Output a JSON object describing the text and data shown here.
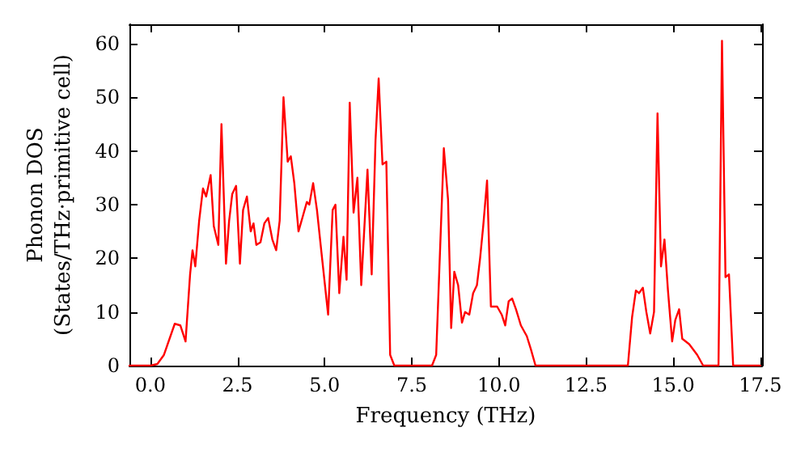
{
  "chart_data": {
    "type": "line",
    "xlabel": "Frequency (THz)",
    "ylabel": "Phonon DOS\n(States/THz·primitive cell)",
    "xlim": [
      -0.6,
      17.55
    ],
    "ylim": [
      0,
      63.6
    ],
    "xticks": [
      {
        "value": 0,
        "label": "0.0"
      },
      {
        "value": 2.5,
        "label": "2.5"
      },
      {
        "value": 5,
        "label": "5.0"
      },
      {
        "value": 7.5,
        "label": "7.5"
      },
      {
        "value": 10,
        "label": "10.0"
      },
      {
        "value": 12.5,
        "label": "12.5"
      },
      {
        "value": 15,
        "label": "15.0"
      },
      {
        "value": 17.5,
        "label": "17.5"
      }
    ],
    "yticks": [
      0,
      10,
      20,
      30,
      40,
      50,
      60
    ],
    "grid": false,
    "marker": "none",
    "line_style": "solid",
    "series": [
      {
        "color": "#ff0000",
        "x": [
          -0.6,
          0,
          0.2,
          0.39,
          0.7,
          0.86,
          1.01,
          1.14,
          1.21,
          1.29,
          1.4,
          1.51,
          1.6,
          1.73,
          1.82,
          1.95,
          2.04,
          2.17,
          2.26,
          2.35,
          2.46,
          2.57,
          2.66,
          2.77,
          2.88,
          2.96,
          3.04,
          3.16,
          3.27,
          3.38,
          3.5,
          3.61,
          3.71,
          3.82,
          3.94,
          4.03,
          4.13,
          4.25,
          4.36,
          4.49,
          4.56,
          4.67,
          4.78,
          4.91,
          5.1,
          5.23,
          5.31,
          5.42,
          5.54,
          5.63,
          5.72,
          5.83,
          5.94,
          6.05,
          6.23,
          6.35,
          6.46,
          6.55,
          6.66,
          6.77,
          6.88,
          7,
          8.08,
          8.2,
          8.42,
          8.54,
          8.63,
          8.72,
          8.83,
          8.94,
          9.03,
          9.15,
          9.26,
          9.37,
          9.46,
          9.55,
          9.66,
          9.77,
          9.95,
          10.08,
          10.18,
          10.28,
          10.38,
          10.49,
          10.63,
          10.8,
          10.92,
          11.05,
          13.7,
          13.82,
          13.93,
          14.02,
          14.13,
          14.23,
          14.34,
          14.45,
          14.55,
          14.65,
          14.75,
          14.85,
          14.97,
          15.06,
          15.17,
          15.26,
          15.46,
          15.69,
          15.86,
          16.3,
          16.4,
          16.5,
          16.6,
          16.72,
          17.5
        ],
        "values": [
          0,
          0,
          0.3,
          2,
          7.8,
          7.5,
          4.5,
          17,
          21.5,
          18.5,
          27,
          33,
          31.5,
          35.5,
          26,
          22.5,
          45,
          19,
          27,
          32,
          33.5,
          19,
          29,
          31.5,
          25,
          26.5,
          22.5,
          23,
          26.5,
          27.5,
          23.5,
          21.5,
          27,
          50,
          38,
          39,
          34,
          25,
          27.5,
          30.5,
          30,
          34,
          29,
          21,
          9.5,
          29,
          30,
          13.5,
          24,
          16,
          49,
          28.5,
          35,
          15,
          36.5,
          17,
          42,
          53.5,
          37.5,
          38,
          2,
          0,
          0,
          2,
          40.5,
          31,
          7,
          17.5,
          15,
          8,
          10,
          9.5,
          13.5,
          15,
          20,
          26,
          34.5,
          11,
          11,
          9.5,
          7.5,
          12,
          12.5,
          10.5,
          7.5,
          5.5,
          3,
          0,
          0,
          9,
          14,
          13.5,
          14.5,
          10,
          6,
          10,
          47,
          18.5,
          23.5,
          14,
          4.5,
          8.5,
          10.5,
          5,
          4,
          2,
          0,
          0,
          60.5,
          16.5,
          17,
          0,
          0
        ]
      }
    ]
  }
}
